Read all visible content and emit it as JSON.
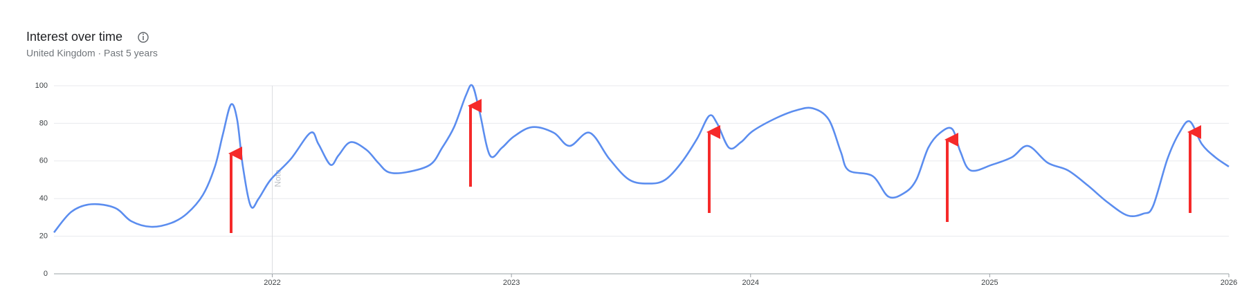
{
  "chart_data": {
    "type": "line",
    "title": "Interest over time",
    "subtitle": "United Kingdom · Past 5 years",
    "note": "Note",
    "series": [
      {
        "name": "Interest",
        "color": "#5b8def",
        "x": [
          2021.087,
          2021.16,
          2021.243,
          2021.343,
          2021.41,
          2021.493,
          2021.577,
          2021.643,
          2021.71,
          2021.76,
          2021.793,
          2021.827,
          2021.853,
          2021.877,
          2021.91,
          2021.943,
          2021.993,
          2022.077,
          2022.16,
          2022.193,
          2022.243,
          2022.277,
          2022.327,
          2022.393,
          2022.443,
          2022.487,
          2022.56,
          2022.66,
          2022.71,
          2022.76,
          2022.81,
          2022.837,
          2022.867,
          2022.91,
          2022.96,
          2023.01,
          2023.087,
          2023.177,
          2023.243,
          2023.327,
          2023.41,
          2023.493,
          2023.577,
          2023.643,
          2023.71,
          2023.777,
          2023.827,
          2023.86,
          2023.91,
          2023.96,
          2024.01,
          2024.11,
          2024.193,
          2024.26,
          2024.327,
          2024.377,
          2024.41,
          2024.51,
          2024.577,
          2024.643,
          2024.693,
          2024.743,
          2024.793,
          2024.843,
          2024.877,
          2024.92,
          2025.01,
          2025.093,
          2025.16,
          2025.243,
          2025.327,
          2025.41,
          2025.493,
          2025.577,
          2025.643,
          2025.683,
          2025.743,
          2025.793,
          2025.837,
          2025.887,
          2025.943,
          2026
        ],
        "values": [
          22,
          33,
          37,
          35,
          28,
          25,
          27,
          32,
          42,
          57,
          74,
          90,
          82,
          57,
          36,
          40,
          50,
          61,
          75,
          69,
          58,
          63,
          70,
          66,
          59,
          54,
          54,
          58,
          67,
          78,
          95,
          100,
          86,
          63,
          67,
          73,
          78,
          75,
          68,
          75,
          61,
          50,
          48,
          50,
          59,
          72,
          84,
          80,
          67,
          70,
          76,
          83,
          87,
          88,
          82,
          65,
          55,
          52,
          41,
          43,
          50,
          67,
          75,
          77,
          65,
          55,
          58,
          62,
          68,
          59,
          55,
          47,
          38,
          31,
          32,
          36,
          61,
          75,
          81,
          69,
          62,
          57
        ]
      }
    ],
    "xlim": [
      2021.087,
      2026
    ],
    "xticks": [
      2022,
      2023,
      2024,
      2025,
      2026
    ],
    "ylim": [
      0,
      100
    ],
    "yticks": [
      0,
      20,
      40,
      60,
      80,
      100
    ],
    "grid": true
  }
}
